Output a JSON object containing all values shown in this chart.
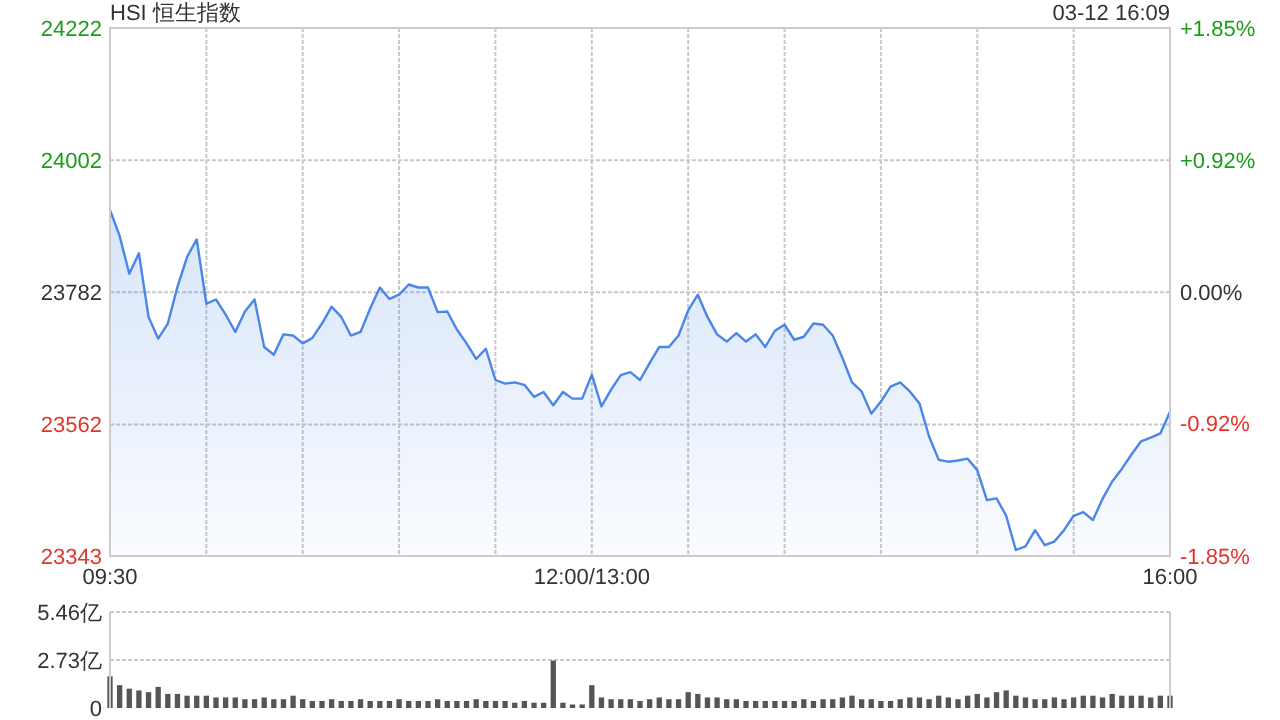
{
  "chart_data": [
    {
      "type": "area",
      "title": "HSI 恒生指数",
      "annotations": [
        "03-12 16:09"
      ],
      "categories": [
        "09:30",
        null,
        null,
        null,
        null,
        null,
        null,
        null,
        null,
        null,
        null,
        null,
        null,
        null,
        null,
        null,
        null,
        null,
        null,
        null,
        null,
        null,
        null,
        null,
        null,
        null,
        null,
        null,
        null,
        null,
        null,
        null,
        null,
        null,
        null,
        null,
        null,
        null,
        null,
        null,
        null,
        null,
        null,
        null,
        null,
        null,
        null,
        null,
        null,
        null,
        "12:00/13:00",
        null,
        null,
        null,
        null,
        null,
        null,
        null,
        null,
        null,
        null,
        null,
        null,
        null,
        null,
        null,
        null,
        null,
        null,
        null,
        null,
        null,
        null,
        null,
        null,
        null,
        null,
        null,
        null,
        null,
        null,
        null,
        null,
        null,
        null,
        null,
        null,
        null,
        null,
        null,
        null,
        null,
        null,
        null,
        null,
        null,
        null,
        null,
        null,
        null,
        null,
        null,
        null,
        null,
        null,
        null,
        null,
        null,
        null,
        null,
        "16:00"
      ],
      "series": [
        {
          "color": "#4a86e8",
          "values": [
            23919,
            23876,
            23813,
            23847,
            23741,
            23705,
            23730,
            23791,
            23841,
            23870,
            23763,
            23770,
            23745,
            23716,
            23750,
            23770,
            23691,
            23678,
            23712,
            23710,
            23697,
            23706,
            23730,
            23758,
            23741,
            23710,
            23716,
            23755,
            23790,
            23771,
            23778,
            23795,
            23790,
            23790,
            23749,
            23750,
            23720,
            23697,
            23671,
            23688,
            23636,
            23630,
            23632,
            23628,
            23608,
            23616,
            23594,
            23616,
            23605,
            23605,
            23645,
            23592,
            23620,
            23644,
            23649,
            23636,
            23664,
            23691,
            23691,
            23710,
            23752,
            23778,
            23741,
            23712,
            23700,
            23714,
            23700,
            23712,
            23691,
            23718,
            23728,
            23703,
            23708,
            23730,
            23728,
            23710,
            23673,
            23632,
            23617,
            23580,
            23600,
            23625,
            23632,
            23617,
            23597,
            23542,
            23503,
            23500,
            23502,
            23505,
            23486,
            23436,
            23439,
            23410,
            23353,
            23359,
            23386,
            23361,
            23367,
            23386,
            23410,
            23416,
            23403,
            23438,
            23467,
            23488,
            23512,
            23534,
            23540,
            23547,
            23583
          ]
        }
      ],
      "ylim": [
        23343,
        24222
      ],
      "yticks": [
        23343,
        23562,
        23782,
        24002,
        24222
      ],
      "y2lim": [
        -1.85,
        1.85
      ],
      "y2ticks": [
        {
          "value": -1.85,
          "label": "-1.85%"
        },
        {
          "value": -0.92,
          "label": "-0.92%"
        },
        {
          "value": 0,
          "label": "0.00%"
        },
        {
          "value": 0.92,
          "label": "+0.92%"
        },
        {
          "value": 1.85,
          "label": "+1.85%"
        }
      ],
      "grid": true,
      "line_style": "solid"
    },
    {
      "type": "bar",
      "categories": [
        null,
        null,
        null,
        null,
        null,
        null,
        null,
        null,
        null,
        null,
        null,
        null,
        null,
        null,
        null,
        null,
        null,
        null,
        null,
        null,
        null,
        null,
        null,
        null,
        null,
        null,
        null,
        null,
        null,
        null,
        null,
        null,
        null,
        null,
        null,
        null,
        null,
        null,
        null,
        null,
        null,
        null,
        null,
        null,
        null,
        null,
        null,
        null,
        null,
        null,
        null,
        null,
        null,
        null,
        null,
        null,
        null,
        null,
        null,
        null,
        null,
        null,
        null,
        null,
        null,
        null,
        null,
        null,
        null,
        null,
        null,
        null,
        null,
        null,
        null,
        null,
        null,
        null,
        null,
        null,
        null,
        null,
        null,
        null,
        null,
        null,
        null,
        null,
        null,
        null,
        null,
        null,
        null,
        null,
        null,
        null,
        null,
        null,
        null,
        null,
        null,
        null,
        null,
        null,
        null,
        null,
        null,
        null,
        null,
        null,
        null
      ],
      "values": [
        1.8,
        1.3,
        1.1,
        1.0,
        0.9,
        1.2,
        0.8,
        0.8,
        0.7,
        0.7,
        0.7,
        0.6,
        0.6,
        0.6,
        0.5,
        0.5,
        0.6,
        0.5,
        0.5,
        0.7,
        0.5,
        0.4,
        0.4,
        0.5,
        0.4,
        0.4,
        0.5,
        0.4,
        0.4,
        0.4,
        0.5,
        0.4,
        0.4,
        0.4,
        0.5,
        0.4,
        0.4,
        0.4,
        0.5,
        0.4,
        0.4,
        0.4,
        0.3,
        0.4,
        0.3,
        0.3,
        2.7,
        0.3,
        0.2,
        0.2,
        1.3,
        0.6,
        0.5,
        0.5,
        0.5,
        0.4,
        0.5,
        0.6,
        0.5,
        0.5,
        0.9,
        0.8,
        0.6,
        0.6,
        0.5,
        0.5,
        0.4,
        0.4,
        0.4,
        0.4,
        0.4,
        0.4,
        0.5,
        0.4,
        0.5,
        0.5,
        0.6,
        0.7,
        0.5,
        0.5,
        0.4,
        0.4,
        0.5,
        0.6,
        0.6,
        0.5,
        0.7,
        0.6,
        0.5,
        0.7,
        0.8,
        0.6,
        0.9,
        1.0,
        0.7,
        0.6,
        0.5,
        0.5,
        0.6,
        0.5,
        0.6,
        0.7,
        0.7,
        0.6,
        0.8,
        0.7,
        0.7,
        0.7,
        0.6,
        0.7,
        0.7
      ],
      "color": "#555555",
      "ylim": [
        0,
        5.46
      ],
      "yticks": [
        0,
        {
          "value": 2.73,
          "label": "2.73亿"
        },
        {
          "value": 5.46,
          "label": "5.46亿"
        }
      ],
      "grid": "y",
      "tick_labels": "y"
    }
  ]
}
